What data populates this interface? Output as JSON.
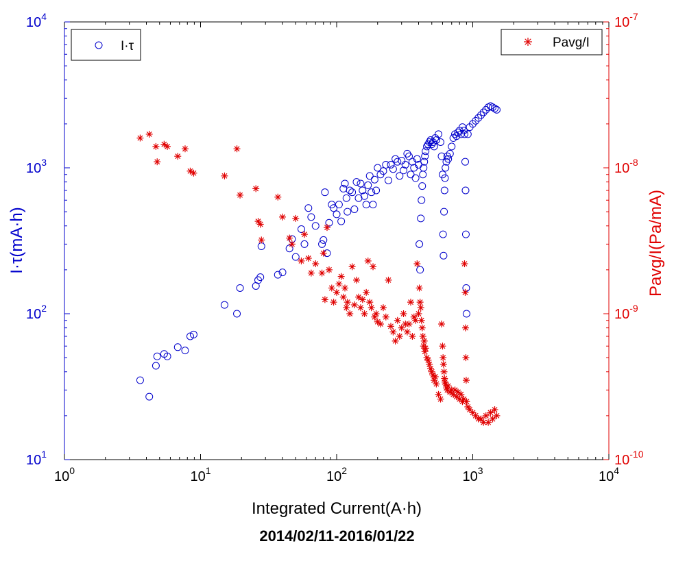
{
  "caption": "2014/02/11-2016/01/22",
  "chart_data": {
    "type": "scatter",
    "xlabel": "Integrated Current(A·h)",
    "ylabel_left": "I·τ(mA·h)",
    "ylabel_right": "Pavg/I(Pa/mA)",
    "x_scale": "log",
    "y_left_scale": "log",
    "y_right_scale": "log",
    "xlim": [
      1,
      10000
    ],
    "ylim_left": [
      10,
      10000
    ],
    "ylim_right": [
      1e-10,
      1e-07
    ],
    "x_ticks": [
      {
        "base": "10",
        "exp": "0"
      },
      {
        "base": "10",
        "exp": "1"
      },
      {
        "base": "10",
        "exp": "2"
      },
      {
        "base": "10",
        "exp": "3"
      },
      {
        "base": "10",
        "exp": "4"
      }
    ],
    "y_left_ticks": [
      {
        "base": "10",
        "exp": "1"
      },
      {
        "base": "10",
        "exp": "2"
      },
      {
        "base": "10",
        "exp": "3"
      },
      {
        "base": "10",
        "exp": "4"
      }
    ],
    "y_right_ticks": [
      {
        "base": "10",
        "exp": "-10"
      },
      {
        "base": "10",
        "exp": "-9"
      },
      {
        "base": "10",
        "exp": "-8"
      },
      {
        "base": "10",
        "exp": "-7"
      }
    ],
    "grid": false,
    "colors": {
      "left": "#0000cc",
      "right": "#e00000",
      "axis": "#000000"
    },
    "series": [
      {
        "name": "I·τ",
        "axis": "left",
        "marker": "circle",
        "color": "#0000cc",
        "x": [
          3.6,
          4.2,
          4.7,
          4.8,
          5.4,
          5.7,
          6.8,
          7.7,
          8.4,
          8.9,
          15,
          18.5,
          19.5,
          25.5,
          26.5,
          27.5,
          28,
          37,
          40,
          45,
          47,
          50,
          55,
          58,
          62,
          65,
          70,
          78,
          80,
          82,
          85,
          88,
          92,
          95,
          100,
          104,
          108,
          112,
          115,
          118,
          120,
          125,
          130,
          135,
          140,
          145,
          150,
          155,
          160,
          165,
          170,
          175,
          180,
          185,
          190,
          195,
          200,
          210,
          220,
          230,
          240,
          250,
          260,
          270,
          280,
          290,
          300,
          310,
          320,
          330,
          340,
          350,
          360,
          370,
          380,
          390,
          400,
          405,
          410,
          415,
          420,
          425,
          430,
          435,
          440,
          445,
          450,
          460,
          470,
          480,
          490,
          500,
          510,
          520,
          530,
          540,
          560,
          580,
          590,
          600,
          605,
          610,
          615,
          620,
          625,
          630,
          640,
          650,
          660,
          680,
          700,
          720,
          740,
          760,
          780,
          800,
          820,
          840,
          860,
          870,
          880,
          885,
          890,
          895,
          900,
          920,
          950,
          1000,
          1050,
          1100,
          1150,
          1200,
          1250,
          1300,
          1350,
          1400,
          1450,
          1500
        ],
        "y": [
          35,
          27,
          44,
          51,
          53,
          51,
          59,
          56,
          70,
          72,
          115,
          100,
          150,
          155,
          170,
          178,
          290,
          185,
          192,
          280,
          325,
          245,
          380,
          300,
          530,
          460,
          400,
          300,
          320,
          680,
          260,
          420,
          560,
          530,
          480,
          560,
          430,
          720,
          780,
          620,
          500,
          700,
          680,
          520,
          800,
          620,
          780,
          700,
          640,
          560,
          760,
          880,
          680,
          560,
          830,
          700,
          1000,
          900,
          950,
          1050,
          820,
          1050,
          980,
          1150,
          1100,
          880,
          1120,
          960,
          1050,
          1250,
          1200,
          900,
          1100,
          1000,
          850,
          1150,
          1050,
          300,
          200,
          450,
          600,
          750,
          900,
          1000,
          1100,
          1200,
          1300,
          1400,
          1450,
          1500,
          1550,
          1450,
          1500,
          1400,
          1600,
          1550,
          1700,
          1500,
          1200,
          900,
          350,
          250,
          500,
          700,
          850,
          1000,
          1100,
          1200,
          1150,
          1250,
          1400,
          1600,
          1700,
          1650,
          1750,
          1800,
          1700,
          1900,
          1800,
          1700,
          1100,
          700,
          350,
          150,
          100,
          1700,
          1900,
          2000,
          2100,
          2200,
          2300,
          2400,
          2500,
          2600,
          2650,
          2600,
          2550,
          2500
        ]
      },
      {
        "name": "Pavg/I",
        "axis": "right",
        "marker": "asterisk",
        "color": "#e00000",
        "x": [
          3.6,
          4.2,
          4.7,
          4.8,
          5.4,
          5.7,
          6.8,
          7.7,
          8.4,
          8.9,
          15,
          18.5,
          19.5,
          25.5,
          26.5,
          27.5,
          28,
          37,
          40,
          45,
          47,
          50,
          55,
          58,
          62,
          65,
          70,
          78,
          80,
          82,
          85,
          88,
          92,
          95,
          100,
          104,
          108,
          112,
          115,
          118,
          120,
          125,
          130,
          135,
          140,
          145,
          150,
          155,
          160,
          165,
          170,
          175,
          180,
          185,
          190,
          195,
          200,
          210,
          220,
          230,
          240,
          250,
          260,
          270,
          280,
          290,
          300,
          310,
          320,
          330,
          340,
          350,
          360,
          370,
          380,
          390,
          400,
          405,
          410,
          415,
          420,
          425,
          430,
          435,
          440,
          445,
          450,
          460,
          470,
          480,
          490,
          500,
          510,
          520,
          530,
          540,
          560,
          580,
          590,
          600,
          605,
          610,
          615,
          620,
          625,
          630,
          640,
          650,
          660,
          680,
          700,
          720,
          740,
          760,
          780,
          800,
          820,
          840,
          860,
          870,
          880,
          885,
          890,
          895,
          900,
          920,
          950,
          1000,
          1050,
          1100,
          1150,
          1200,
          1250,
          1300,
          1350,
          1400,
          1450,
          1500
        ],
        "y": [
          1.6e-08,
          1.7e-08,
          1.4e-08,
          1.1e-08,
          1.45e-08,
          1.4e-08,
          1.2e-08,
          1.35e-08,
          9.5e-09,
          9.2e-09,
          8.8e-09,
          1.35e-08,
          6.5e-09,
          7.2e-09,
          4.3e-09,
          4.1e-09,
          3.2e-09,
          6.3e-09,
          4.6e-09,
          3.3e-09,
          3e-09,
          4.5e-09,
          2.3e-09,
          3.5e-09,
          2.4e-09,
          1.9e-09,
          2.2e-09,
          1.9e-09,
          2.6e-09,
          1.25e-09,
          3.9e-09,
          2e-09,
          1.5e-09,
          1.2e-09,
          1.4e-09,
          1.6e-09,
          1.8e-09,
          1.3e-09,
          1.5e-09,
          1.1e-09,
          1.2e-09,
          1e-09,
          2.1e-09,
          1.15e-09,
          1.7e-09,
          1.3e-09,
          1.1e-09,
          1.25e-09,
          1e-09,
          1.4e-09,
          2.3e-09,
          1.2e-09,
          1.1e-09,
          2.1e-09,
          9.5e-10,
          1e-09,
          8.8e-10,
          8.5e-10,
          1.1e-09,
          9.5e-10,
          1.7e-09,
          8.2e-10,
          7.5e-10,
          6.5e-10,
          9e-10,
          7e-10,
          8e-10,
          1e-09,
          8.5e-10,
          7.5e-10,
          8.5e-10,
          1.2e-09,
          7e-10,
          9.5e-10,
          9e-10,
          2.2e-09,
          1e-09,
          1.5e-09,
          1.2e-09,
          1.1e-09,
          9e-10,
          8e-10,
          7e-10,
          6e-10,
          6.5e-10,
          5.5e-10,
          5.8e-10,
          5e-10,
          4.8e-10,
          4.5e-10,
          4.2e-10,
          4e-10,
          3.8e-10,
          3.5e-10,
          3.7e-10,
          3.3e-10,
          2.8e-10,
          2.6e-10,
          8.5e-10,
          6e-10,
          5e-10,
          4.5e-10,
          4e-10,
          3.6e-10,
          3.4e-10,
          3.3e-10,
          3.1e-10,
          3e-10,
          3.2e-10,
          2.9e-10,
          3e-10,
          2.8e-10,
          3e-10,
          2.7e-10,
          2.9e-10,
          2.6e-10,
          2.8e-10,
          2.5e-10,
          2.6e-10,
          2.2e-09,
          1.4e-09,
          8e-10,
          5e-10,
          3.5e-10,
          2.5e-10,
          2.3e-10,
          2.2e-10,
          2.1e-10,
          2e-10,
          1.9e-10,
          1.9e-10,
          1.8e-10,
          2e-10,
          1.8e-10,
          2.1e-10,
          1.9e-10,
          2.2e-10,
          2e-10
        ]
      }
    ],
    "legends": [
      {
        "label": "I·τ",
        "marker": "circle",
        "color": "#0000cc",
        "placement": "top-left"
      },
      {
        "label": "Pavg/I",
        "marker": "asterisk",
        "color": "#e00000",
        "placement": "top-right"
      }
    ]
  }
}
